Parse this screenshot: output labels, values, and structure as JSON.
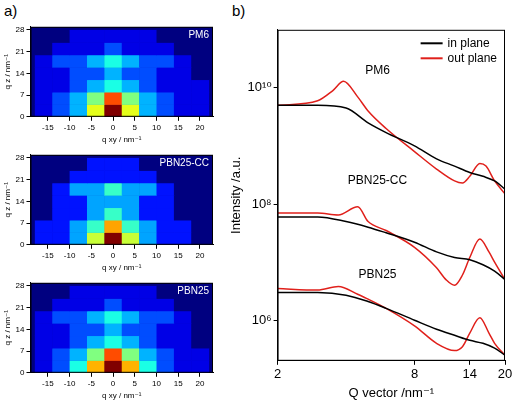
{
  "panel_labels": [
    "a)",
    "b)"
  ],
  "chart_data": [
    {
      "type": "heatmap",
      "title": "PM6",
      "xlabel": "q xy / nm⁻¹",
      "ylabel": "q z / nm⁻¹",
      "xlim": [
        -19,
        23
      ],
      "ylim": [
        0,
        29
      ],
      "xticks": [
        -15,
        -10,
        -5,
        0,
        5,
        10,
        15,
        20
      ],
      "yticks": [
        0,
        7,
        14,
        21,
        28
      ],
      "x_edges": [
        -18,
        -14,
        -10,
        -6,
        -2,
        2,
        6,
        10,
        14,
        18,
        22
      ],
      "y_edges": [
        0,
        4,
        8,
        12,
        16,
        20,
        24,
        28
      ],
      "cells": [
        [
          1,
          2,
          3,
          6,
          10,
          6,
          3,
          2,
          1,
          1
        ],
        [
          1,
          2,
          3,
          5,
          8,
          5,
          3,
          2,
          1,
          1
        ],
        [
          1,
          1,
          2,
          3,
          4,
          3,
          2,
          1,
          1,
          1
        ],
        [
          1,
          1,
          2,
          2,
          3,
          2,
          2,
          1,
          1,
          0
        ],
        [
          1,
          2,
          2,
          3,
          4,
          3,
          2,
          2,
          1,
          0
        ],
        [
          0,
          1,
          1,
          1,
          2,
          1,
          1,
          1,
          0,
          0
        ],
        [
          0,
          0,
          1,
          1,
          1,
          1,
          1,
          0,
          0,
          0
        ]
      ]
    },
    {
      "type": "heatmap",
      "title": "PBN25-CC",
      "xlabel": "q xy / nm⁻¹",
      "ylabel": "q z / nm⁻¹",
      "xlim": [
        -19,
        23
      ],
      "ylim": [
        0,
        29
      ],
      "xticks": [
        -15,
        -10,
        -5,
        0,
        5,
        10,
        15,
        20
      ],
      "yticks": [
        0,
        7,
        14,
        21,
        28
      ],
      "x_edges": [
        -18,
        -14,
        -10,
        -6,
        -2,
        2,
        6,
        10,
        14,
        18,
        22
      ],
      "y_edges": [
        0,
        4,
        8,
        12,
        16,
        20,
        24,
        28
      ],
      "cells": [
        [
          1,
          1,
          2,
          4,
          7,
          4,
          2,
          1,
          1,
          0
        ],
        [
          1,
          1,
          2,
          3,
          5,
          3,
          2,
          1,
          1,
          0
        ],
        [
          0,
          1,
          1,
          2,
          3,
          2,
          1,
          1,
          0,
          0
        ],
        [
          0,
          1,
          1,
          2,
          2,
          2,
          1,
          1,
          0,
          0
        ],
        [
          0,
          1,
          2,
          2,
          3,
          2,
          2,
          1,
          0,
          0
        ],
        [
          0,
          0,
          1,
          1,
          1,
          1,
          1,
          0,
          0,
          0
        ],
        [
          0,
          0,
          0,
          1,
          1,
          1,
          0,
          0,
          0,
          0
        ]
      ]
    },
    {
      "type": "heatmap",
      "title": "PBN25",
      "xlabel": "q xy / nm⁻¹",
      "ylabel": "q z / nm⁻¹",
      "xlim": [
        -19,
        23
      ],
      "ylim": [
        0,
        29
      ],
      "xticks": [
        -15,
        -10,
        -5,
        0,
        5,
        10,
        15,
        20
      ],
      "yticks": [
        0,
        7,
        14,
        21,
        28
      ],
      "x_edges": [
        -18,
        -14,
        -10,
        -6,
        -2,
        2,
        6,
        10,
        14,
        18,
        22
      ],
      "y_edges": [
        0,
        4,
        8,
        12,
        16,
        20,
        24,
        28
      ],
      "cells": [
        [
          1,
          2,
          4,
          7,
          10,
          7,
          4,
          2,
          1,
          1
        ],
        [
          1,
          2,
          3,
          5,
          8,
          5,
          3,
          2,
          1,
          1
        ],
        [
          1,
          1,
          2,
          3,
          4,
          3,
          2,
          1,
          1,
          0
        ],
        [
          1,
          1,
          2,
          2,
          3,
          2,
          2,
          1,
          1,
          0
        ],
        [
          1,
          2,
          2,
          3,
          4,
          3,
          2,
          2,
          1,
          0
        ],
        [
          0,
          1,
          1,
          1,
          2,
          1,
          1,
          1,
          0,
          0
        ],
        [
          0,
          0,
          1,
          1,
          1,
          1,
          1,
          0,
          0,
          0
        ]
      ]
    },
    {
      "type": "line",
      "xlabel": "Q vector /nm⁻¹",
      "ylabel": "Intensity /a.u.",
      "log": true,
      "grid": false,
      "legend": "upper right",
      "xlim": [
        2,
        20
      ],
      "xticks": [
        2,
        8,
        14,
        20
      ],
      "ylim": [
        200000,
        100000000000
      ],
      "yticks": [
        {
          "value": 1000000,
          "label": "10⁶"
        },
        {
          "value": 100000000,
          "label": "10⁸"
        },
        {
          "value": 10000000000,
          "label": "10¹⁰"
        }
      ],
      "series": [
        {
          "name": "in plane",
          "color": "#000000",
          "x": [
            2,
            3,
            4,
            5,
            6,
            8,
            10,
            12,
            14,
            16,
            18,
            20
          ],
          "values": [
            5000000000,
            5000000000,
            4500000000,
            2500000000,
            1700000000,
            1000000000,
            600000000,
            450000000,
            350000000,
            300000000,
            250000000,
            180000000
          ]
        },
        {
          "name": "out plane",
          "color": "#e0201b",
          "x": [
            2,
            3,
            3.5,
            3.9,
            4.5,
            5,
            6,
            8,
            10,
            12,
            13,
            14,
            15.5,
            16.5,
            18,
            20
          ],
          "values": [
            5000000000,
            6000000000,
            9000000000,
            13000000000,
            7000000000,
            4000000000,
            2000000000,
            800000000,
            400000000,
            250000000,
            230000000,
            300000000,
            500000000,
            450000000,
            250000000,
            150000000
          ]
        },
        {
          "name": "in plane",
          "color": "#000000",
          "x": [
            2,
            3,
            4,
            5,
            6,
            8,
            10,
            12,
            14,
            16,
            18,
            20
          ],
          "values": [
            60000000,
            60000000,
            50000000,
            40000000,
            32000000,
            22000000,
            15000000,
            12000000,
            11000000,
            9000000,
            7000000,
            5000000
          ]
        },
        {
          "name": "out plane",
          "color": "#e0201b",
          "x": [
            2,
            3,
            3.7,
            4.5,
            5,
            6,
            8,
            10,
            11,
            12,
            13,
            14,
            15.5,
            17,
            18,
            20
          ],
          "values": [
            70000000,
            70000000,
            65000000,
            90000000,
            50000000,
            35000000,
            18000000,
            8000000,
            5000000,
            4000000,
            6000000,
            12000000,
            25000000,
            15000000,
            10000000,
            5000000
          ]
        },
        {
          "name": "in plane",
          "color": "#000000",
          "x": [
            2,
            3,
            4,
            5,
            6,
            8,
            10,
            12,
            14,
            16,
            18,
            20
          ],
          "values": [
            3000000,
            3000000,
            2700000,
            2100000,
            1600000,
            1000000,
            700000,
            550000,
            450000,
            400000,
            330000,
            250000
          ]
        },
        {
          "name": "out plane",
          "color": "#e0201b",
          "x": [
            2,
            3,
            3.7,
            4.5,
            5,
            6,
            8,
            10,
            12,
            13,
            14,
            15.5,
            17,
            18,
            20
          ],
          "values": [
            3500000,
            3300000,
            3800000,
            2800000,
            2300000,
            1600000,
            800000,
            400000,
            300000,
            350000,
            600000,
            1100000,
            600000,
            400000,
            250000
          ]
        }
      ],
      "annotations": [
        {
          "text": "PM6",
          "x": 5.5,
          "y": 20000000000
        },
        {
          "text": "PBN25-CC",
          "x": 5.5,
          "y": 250000000
        },
        {
          "text": "PBN25",
          "x": 5.5,
          "y": 6000000
        }
      ]
    }
  ]
}
